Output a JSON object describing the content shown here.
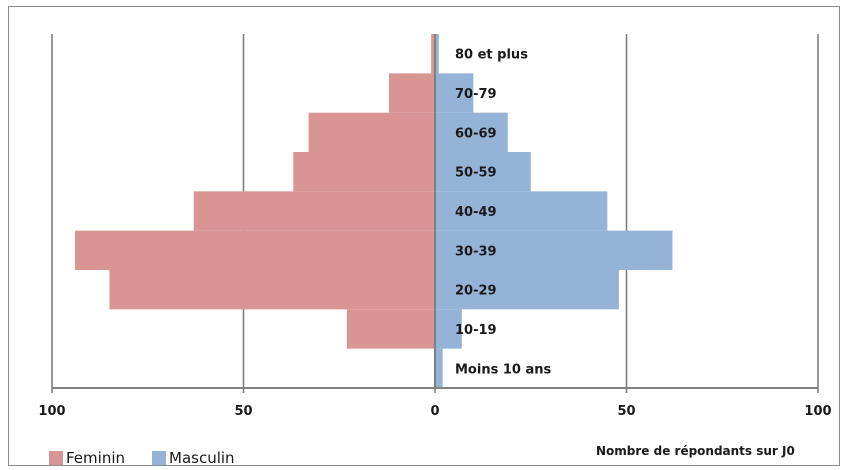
{
  "chart_data": {
    "type": "bar",
    "orientation": "horizontal",
    "layout": "population-pyramid",
    "categories": [
      "Moins 10 ans",
      "10-19",
      "20-29",
      "30-39",
      "40-49",
      "50-59",
      "60-69",
      "70-79",
      "80 et plus"
    ],
    "series": [
      {
        "name": "Feminin",
        "side": "left",
        "color": "#d99594",
        "values": [
          0,
          23,
          85,
          94,
          63,
          37,
          33,
          12,
          1
        ]
      },
      {
        "name": "Masculin",
        "side": "right",
        "color": "#95b3d7",
        "values": [
          2,
          7,
          48,
          62,
          45,
          25,
          19,
          10,
          1
        ]
      }
    ],
    "x_ticks": [
      {
        "value": -100,
        "label": "100"
      },
      {
        "value": -50,
        "label": "50"
      },
      {
        "value": 0,
        "label": "0"
      },
      {
        "value": 50,
        "label": "50"
      },
      {
        "value": 100,
        "label": "100"
      }
    ],
    "xlim": [
      -100,
      100
    ],
    "xlabel": "Nombre de répondants sur J0",
    "grid": "vertical",
    "legend": {
      "position": "bottom-left"
    },
    "axis_color": "#808080",
    "grid_color": "#7f7f7f"
  }
}
